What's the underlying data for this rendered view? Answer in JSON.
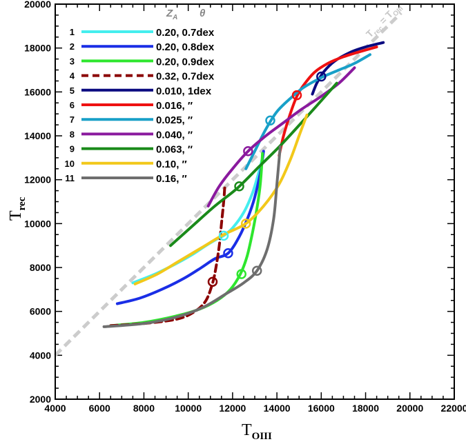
{
  "chart_data": {
    "type": "line",
    "xlabel": "T",
    "xlabel_sub": "OIII",
    "ylabel": "T",
    "ylabel_sub": "rec",
    "xlim": [
      4000,
      22000
    ],
    "ylim": [
      2000,
      20000
    ],
    "xticks": [
      4000,
      6000,
      8000,
      10000,
      12000,
      14000,
      16000,
      18000,
      20000,
      22000
    ],
    "yticks": [
      2000,
      4000,
      6000,
      8000,
      10000,
      12000,
      14000,
      16000,
      18000,
      20000
    ],
    "x_minor_step": 500,
    "y_minor_step": 500,
    "grid": false,
    "legend": {
      "placement": "top-left",
      "header_z": "Z",
      "header_z_sub": "A",
      "header_theta": "θ",
      "entries": [
        {
          "num": "1",
          "label": "0.20, 0.7dex"
        },
        {
          "num": "2",
          "label": "0.20, 0.8dex"
        },
        {
          "num": "3",
          "label": "0.20, 0.9dex"
        },
        {
          "num": "4",
          "label": "0.32, 0.7dex"
        },
        {
          "num": "5",
          "label": "0.010, 1dex"
        },
        {
          "num": "6",
          "label": "0.016, ″"
        },
        {
          "num": "7",
          "label": "0.025, ″"
        },
        {
          "num": "8",
          "label": "0.040, ″"
        },
        {
          "num": "9",
          "label": "0.063, ″"
        },
        {
          "num": "10",
          "label": "0.10, ″"
        },
        {
          "num": "11",
          "label": "0.16, ″"
        }
      ]
    },
    "diagonal": {
      "label_main": "T",
      "label_sub": "rec",
      "label_rest": " = T",
      "label_sub2": "OIII",
      "color": "#cccccc",
      "x": [
        4000,
        19600
      ],
      "y": [
        4000,
        19600
      ]
    },
    "series": [
      {
        "color": "#44eeee",
        "dashed": false,
        "x": [
          7500,
          8500,
          9500,
          10200,
          10800,
          11300,
          11600,
          12000,
          12500,
          12900,
          13200,
          13350
        ],
        "y": [
          7300,
          7700,
          8200,
          8600,
          9000,
          9300,
          9450,
          9800,
          10500,
          11400,
          12400,
          13000
        ],
        "marker": [
          11600,
          9450
        ]
      },
      {
        "color": "#1a2ee6",
        "dashed": false,
        "x": [
          6800,
          7800,
          8800,
          9800,
          10600,
          11200,
          11800,
          12300,
          12700,
          13000,
          13250,
          13400
        ],
        "y": [
          6350,
          6600,
          7000,
          7500,
          8000,
          8400,
          8650,
          9400,
          10300,
          11200,
          12300,
          13300
        ],
        "marker": [
          11800,
          8650
        ]
      },
      {
        "color": "#2ee62e",
        "dashed": false,
        "x": [
          6500,
          8000,
          9500,
          10500,
          11300,
          11900,
          12350,
          12650,
          12900,
          13100,
          13250,
          13350
        ],
        "y": [
          5350,
          5500,
          5800,
          6100,
          6500,
          7000,
          7700,
          8500,
          9600,
          10700,
          11800,
          13200
        ],
        "marker": [
          12400,
          7700
        ]
      },
      {
        "color": "#8b0000",
        "dashed": true,
        "x": [
          6500,
          8000,
          9500,
          10300,
          10800,
          11100,
          11250,
          11400,
          11500,
          11600,
          11650
        ],
        "y": [
          5350,
          5450,
          5650,
          6000,
          6500,
          7300,
          8000,
          9000,
          10000,
          11000,
          11700
        ],
        "marker": [
          11100,
          7350
        ]
      },
      {
        "color": "#0a0a80",
        "dashed": false,
        "x": [
          15600,
          15800,
          16100,
          16600,
          17300,
          18000,
          18800
        ],
        "y": [
          15900,
          16400,
          16900,
          17400,
          17800,
          18050,
          18250
        ],
        "marker": [
          16000,
          16700
        ]
      },
      {
        "color": "#ee1111",
        "dashed": false,
        "x": [
          14100,
          14300,
          14600,
          14900,
          15200,
          15700,
          16300,
          17000,
          17800,
          18500
        ],
        "y": [
          13100,
          14000,
          15000,
          15800,
          16300,
          16900,
          17300,
          17600,
          17850,
          18050
        ],
        "marker": [
          14900,
          15850
        ]
      },
      {
        "color": "#18a0c8",
        "dashed": false,
        "x": [
          12600,
          13000,
          13500,
          14000,
          14600,
          15200,
          16000,
          16800,
          17500,
          18200
        ],
        "y": [
          12500,
          13300,
          14300,
          15100,
          15700,
          16200,
          16650,
          17000,
          17300,
          17700
        ],
        "marker": [
          13700,
          14700
        ]
      },
      {
        "color": "#8a1a9e",
        "dashed": false,
        "x": [
          10900,
          11400,
          12000,
          12700,
          13500,
          14300,
          15100,
          16000,
          16800,
          17500
        ],
        "y": [
          10800,
          11700,
          12500,
          13300,
          14000,
          14600,
          15200,
          15800,
          16400,
          17100
        ],
        "marker": [
          12700,
          13300
        ]
      },
      {
        "color": "#1a8a1a",
        "dashed": false,
        "x": [
          9200,
          10200,
          11200,
          12200,
          13200,
          14200,
          15200,
          16000,
          16700
        ],
        "y": [
          9000,
          9900,
          10800,
          11600,
          12600,
          13600,
          14700,
          15600,
          16400
        ],
        "marker": [
          12300,
          11700
        ]
      },
      {
        "color": "#f2c81a",
        "dashed": false,
        "x": [
          7600,
          8600,
          9600,
          10600,
          11600,
          12600,
          13400,
          14100,
          14600,
          15000,
          15350
        ],
        "y": [
          7250,
          7700,
          8300,
          8900,
          9500,
          10000,
          10800,
          11800,
          12900,
          14000,
          14950
        ],
        "marker": [
          12600,
          10000
        ]
      },
      {
        "color": "#6e6e6e",
        "dashed": false,
        "x": [
          6200,
          8000,
          9500,
          10700,
          11700,
          12500,
          13100,
          13550,
          13850,
          14000,
          14150
        ],
        "y": [
          5300,
          5450,
          5750,
          6200,
          6800,
          7300,
          7850,
          8800,
          10200,
          11800,
          13500
        ],
        "marker": [
          13100,
          7850
        ]
      }
    ]
  }
}
